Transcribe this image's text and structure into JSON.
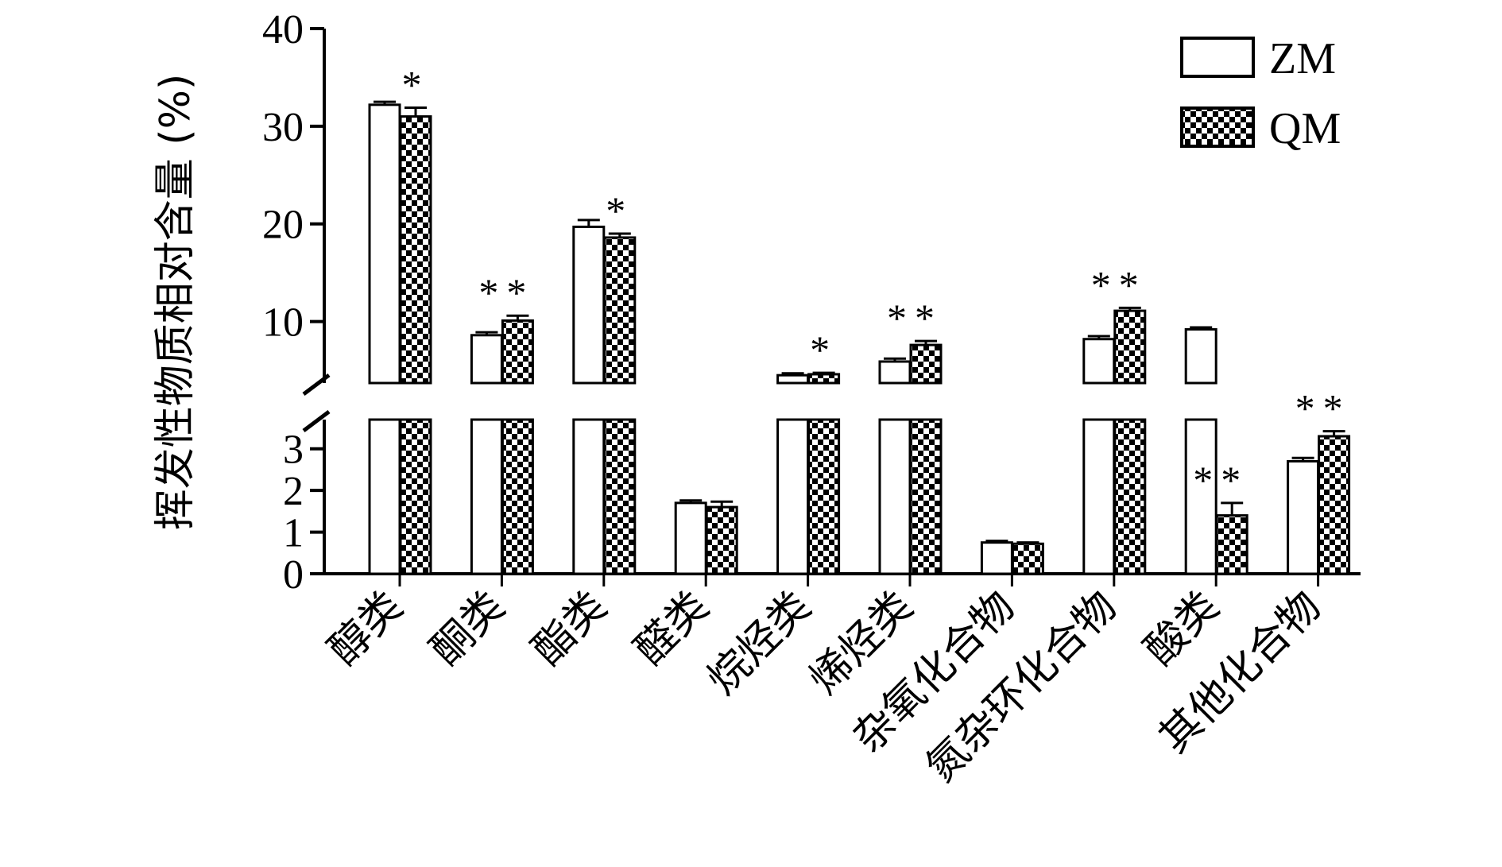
{
  "chart_data": {
    "type": "bar",
    "ylabel": "挥发性物质相对含量 (%)",
    "categories": [
      "醇类",
      "酮类",
      "酯类",
      "醛类",
      "烷烃类",
      "烯烃类",
      "杂氧化合物",
      "氮杂环化合物",
      "酸类",
      "其他化合物"
    ],
    "series": [
      {
        "name": "ZM",
        "values": [
          32.2,
          8.6,
          19.7,
          1.7,
          4.5,
          5.9,
          0.75,
          8.2,
          9.2,
          2.7
        ],
        "errors": [
          0.3,
          0.3,
          0.7,
          0.06,
          0.2,
          0.3,
          0.04,
          0.3,
          0.2,
          0.08
        ],
        "significance": [
          "",
          "",
          "",
          "",
          "",
          "",
          "",
          "",
          "",
          ""
        ],
        "pattern": "open"
      },
      {
        "name": "QM",
        "values": [
          31.0,
          10.1,
          18.6,
          1.6,
          4.6,
          7.6,
          0.72,
          11.1,
          1.4,
          3.3
        ],
        "errors": [
          0.9,
          0.5,
          0.4,
          0.13,
          0.15,
          0.4,
          0.03,
          0.3,
          0.3,
          0.12
        ],
        "significance": [
          "*",
          "**",
          "*",
          "",
          "*",
          "**",
          "",
          "**",
          "**",
          "**"
        ],
        "pattern": "checker"
      }
    ],
    "y_axis_upper": {
      "range": [
        3.7,
        40
      ],
      "ticks": [
        10,
        20,
        30,
        40
      ]
    },
    "y_axis_lower": {
      "range": [
        0,
        3.7
      ],
      "ticks": [
        0,
        1,
        2,
        3
      ]
    },
    "axis_break": true,
    "legend_position": "top-right",
    "grid": false
  }
}
